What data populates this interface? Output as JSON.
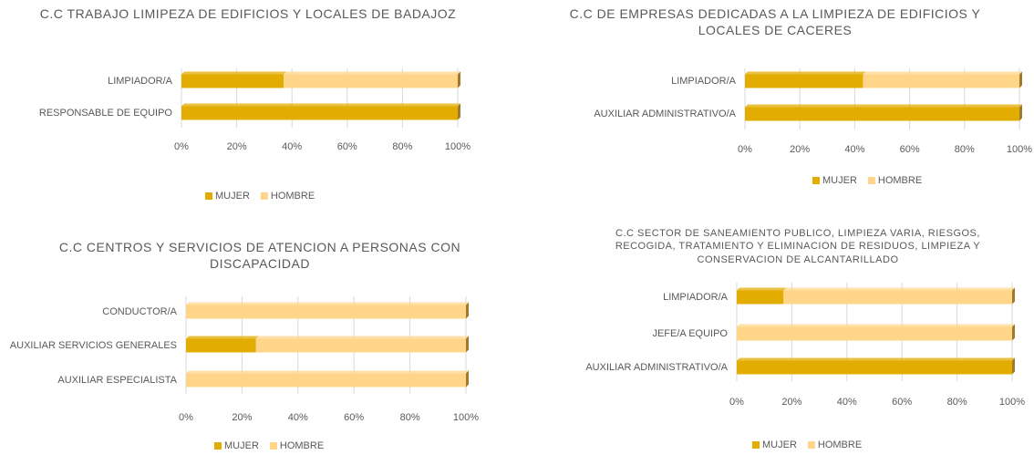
{
  "chart_data": [
    {
      "type": "bar",
      "orientation": "horizontal",
      "stacked": true,
      "title": "C.C TRABAJO LIMIPEZA DE EDIFICIOS Y LOCALES DE BADAJOZ",
      "categories": [
        "LIMPIADOR/A",
        "RESPONSABLE DE EQUIPO"
      ],
      "series": [
        {
          "name": "MUJER",
          "color": "#e3ac00",
          "values": [
            37,
            100
          ]
        },
        {
          "name": "HOMBRE",
          "color": "#ffd58a",
          "values": [
            63,
            0
          ]
        }
      ],
      "xlim": [
        0,
        100
      ],
      "xticks": [
        {
          "value": 0,
          "label": "0%"
        },
        {
          "value": 20,
          "label": "20%"
        },
        {
          "value": 40,
          "label": "40%"
        },
        {
          "value": 60,
          "label": "60%"
        },
        {
          "value": 80,
          "label": "80%"
        },
        {
          "value": 100,
          "label": "100%"
        }
      ],
      "grid": true,
      "legend": "bottom"
    },
    {
      "type": "bar",
      "orientation": "horizontal",
      "stacked": true,
      "title": "C.C DE EMPRESAS DEDICADAS A LA LIMPIEZA DE EDIFICIOS Y LOCALES DE CACERES",
      "categories": [
        "LIMPIADOR/A",
        "AUXILIAR ADMINISTRATIVO/A"
      ],
      "series": [
        {
          "name": "MUJER",
          "color": "#e3ac00",
          "values": [
            43,
            100
          ]
        },
        {
          "name": "HOMBRE",
          "color": "#ffd58a",
          "values": [
            57,
            0
          ]
        }
      ],
      "xlim": [
        0,
        100
      ],
      "xticks": [
        {
          "value": 0,
          "label": "0%"
        },
        {
          "value": 20,
          "label": "20%"
        },
        {
          "value": 40,
          "label": "40%"
        },
        {
          "value": 60,
          "label": "60%"
        },
        {
          "value": 80,
          "label": "80%"
        },
        {
          "value": 100,
          "label": "100%"
        }
      ],
      "grid": true,
      "legend": "bottom"
    },
    {
      "type": "bar",
      "orientation": "horizontal",
      "stacked": true,
      "title": "C.C CENTROS Y SERVICIOS DE ATENCION A PERSONAS CON DISCAPACIDAD",
      "categories": [
        "CONDUCTOR/A",
        "AUXILIAR SERVICIOS GENERALES",
        "AUXILIAR ESPECIALISTA"
      ],
      "series": [
        {
          "name": "MUJER",
          "color": "#e3ac00",
          "values": [
            0,
            25,
            0
          ]
        },
        {
          "name": "HOMBRE",
          "color": "#ffd58a",
          "values": [
            100,
            75,
            100
          ]
        }
      ],
      "xlim": [
        0,
        100
      ],
      "xticks": [
        {
          "value": 0,
          "label": "0%"
        },
        {
          "value": 20,
          "label": "20%"
        },
        {
          "value": 40,
          "label": "40%"
        },
        {
          "value": 60,
          "label": "60%"
        },
        {
          "value": 80,
          "label": "80%"
        },
        {
          "value": 100,
          "label": "100%"
        }
      ],
      "grid": true,
      "legend": "bottom"
    },
    {
      "type": "bar",
      "orientation": "horizontal",
      "stacked": true,
      "title": "C.C SECTOR DE SANEAMIENTO PUBLICO, LIMPIEZA VARIA, RIESGOS, RECOGIDA, TRATAMIENTO Y ELIMINACION DE RESIDUOS, LIMPIEZA Y CONSERVACION DE ALCANTARILLADO",
      "categories": [
        "LIMPIADOR/A",
        "JEFE/A EQUIPO",
        "AUXILIAR ADMINISTRATIVO/A"
      ],
      "series": [
        {
          "name": "MUJER",
          "color": "#e3ac00",
          "values": [
            17,
            0,
            100
          ]
        },
        {
          "name": "HOMBRE",
          "color": "#ffd58a",
          "values": [
            83,
            100,
            0
          ]
        }
      ],
      "xlim": [
        0,
        100
      ],
      "xticks": [
        {
          "value": 0,
          "label": "0%"
        },
        {
          "value": 20,
          "label": "20%"
        },
        {
          "value": 40,
          "label": "40%"
        },
        {
          "value": 60,
          "label": "60%"
        },
        {
          "value": 80,
          "label": "80%"
        },
        {
          "value": 100,
          "label": "100%"
        }
      ],
      "grid": true,
      "legend": "bottom"
    }
  ]
}
